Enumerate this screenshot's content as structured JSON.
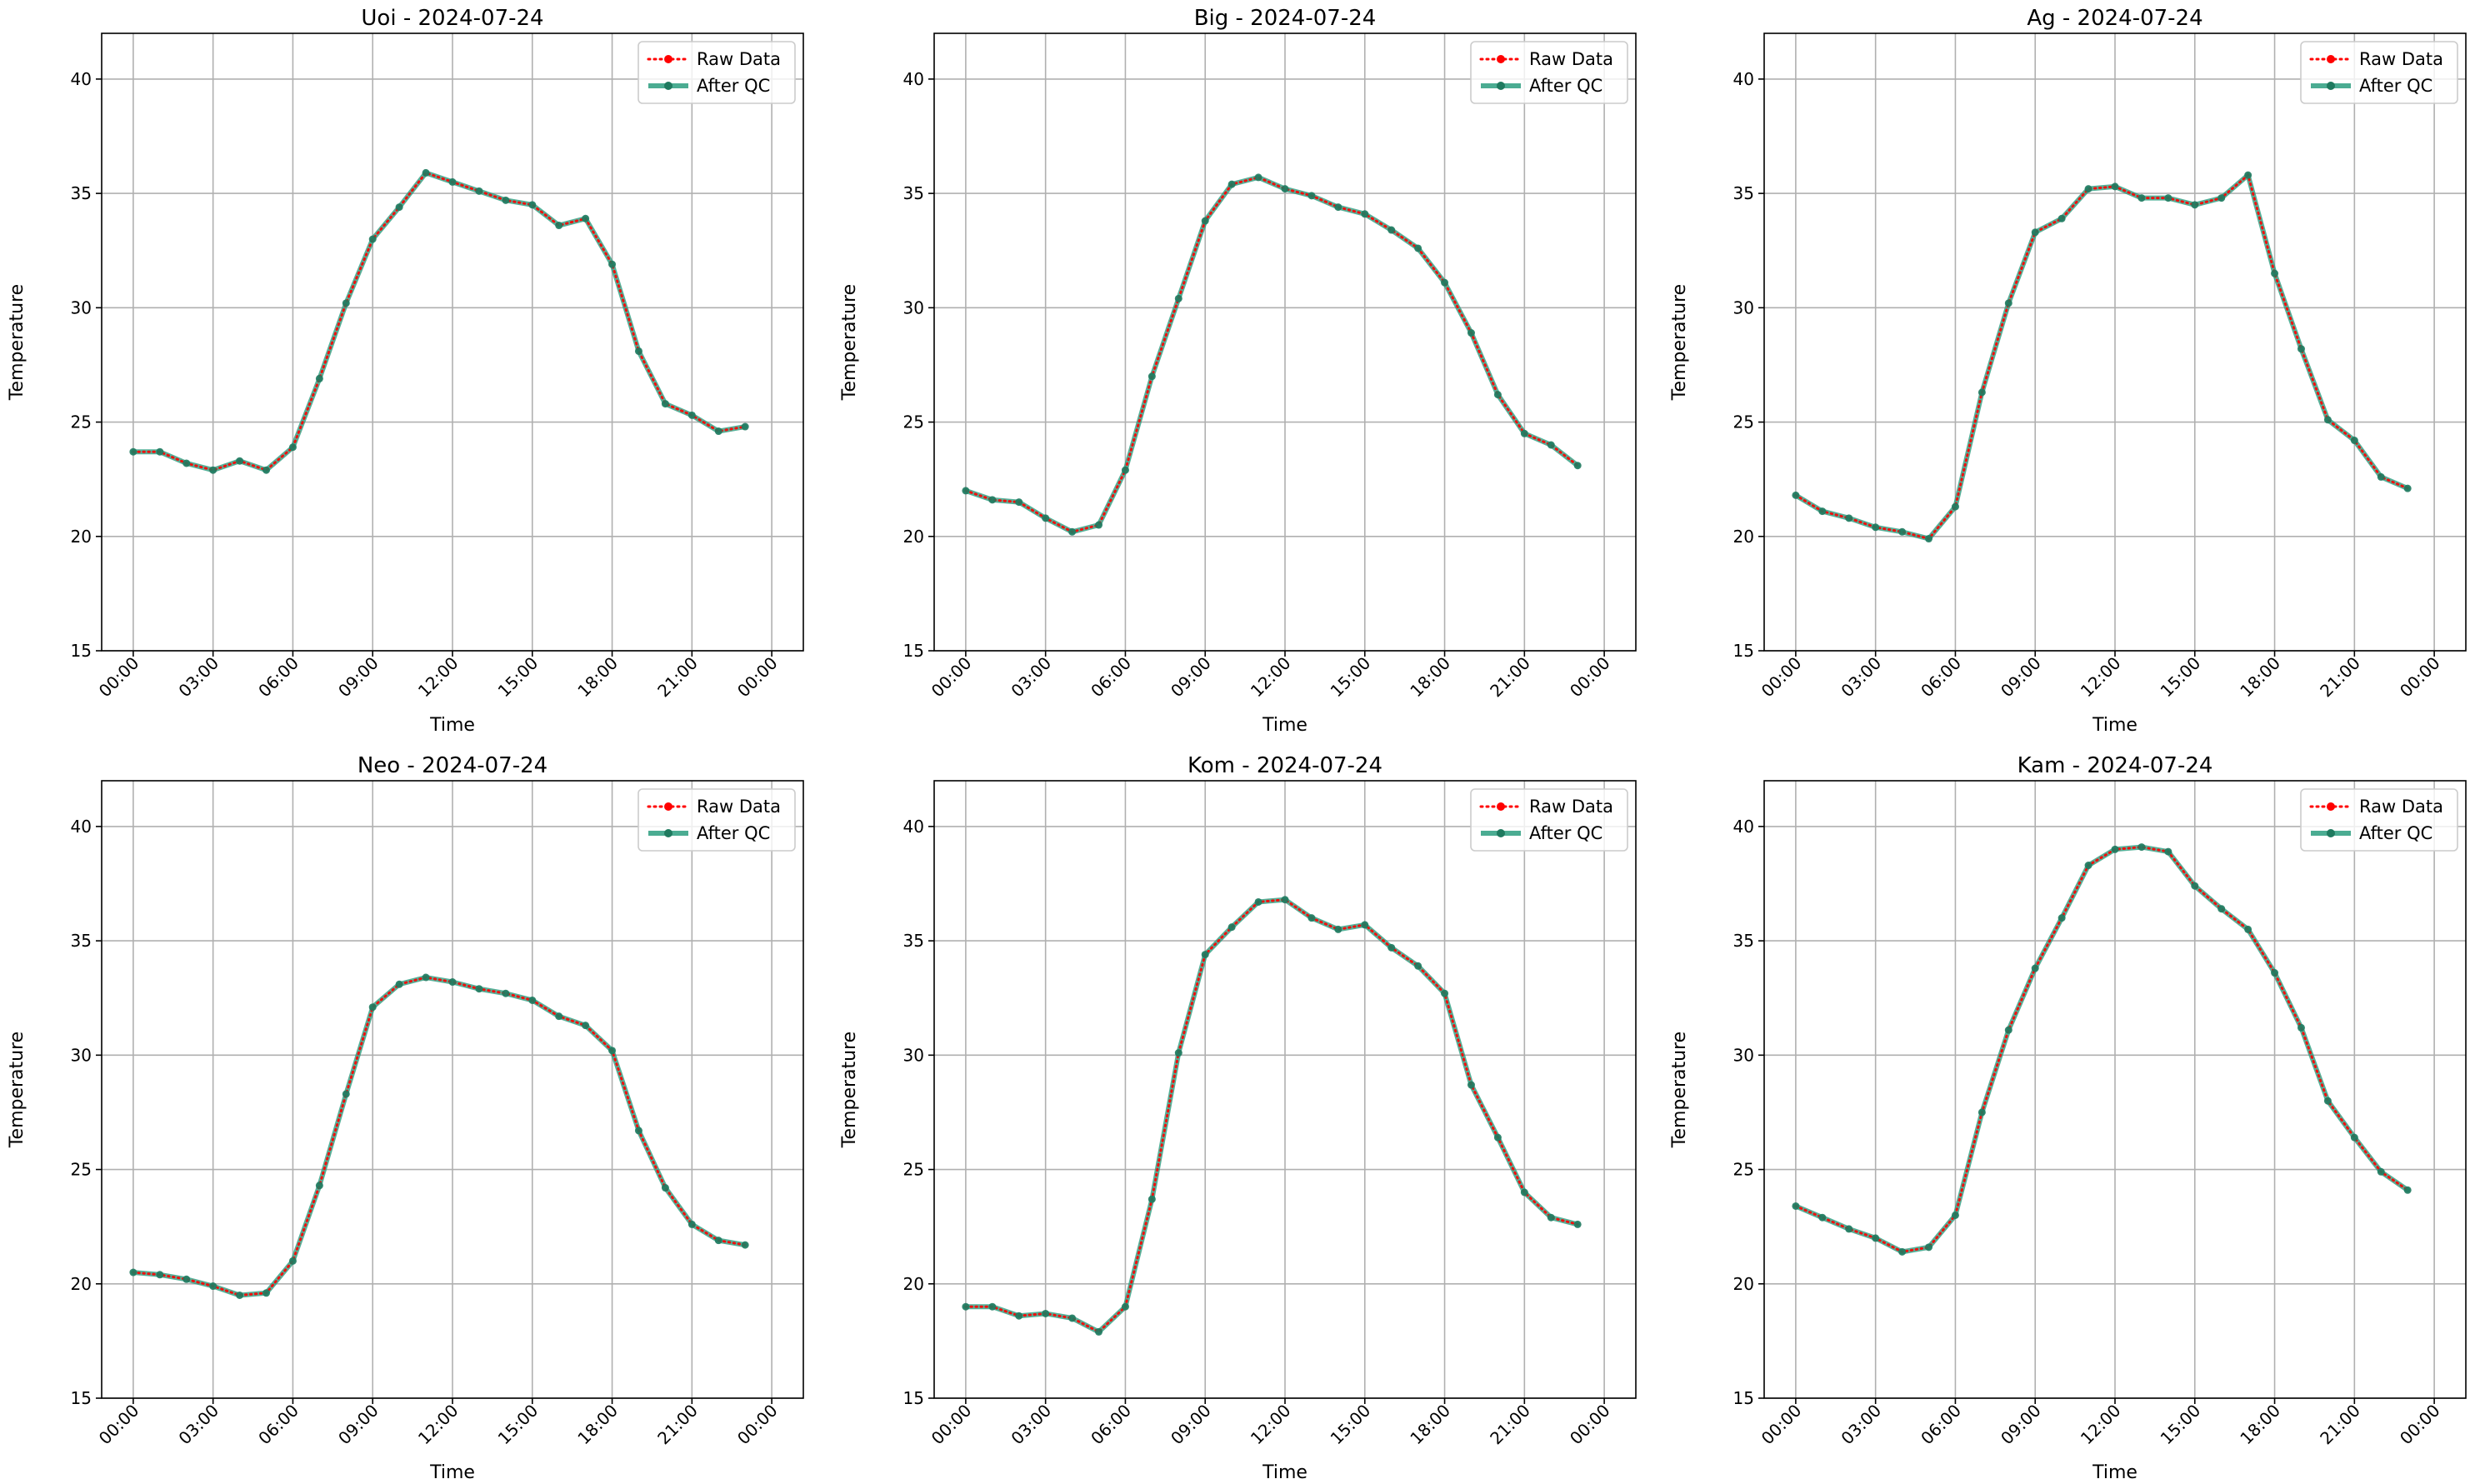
{
  "figure": {
    "xlabel": "Time",
    "ylabel": "Temperature",
    "x_tick_labels": [
      "00:00",
      "03:00",
      "06:00",
      "09:00",
      "12:00",
      "15:00",
      "18:00",
      "21:00",
      "00:00"
    ],
    "legend": [
      "Raw Data",
      "After QC"
    ],
    "colors": {
      "raw": "#ff0000",
      "qc": "#2b9d7f",
      "qc_marker": "#1f7a5f",
      "grid": "#b0b0b0"
    }
  },
  "chart_data": [
    {
      "type": "line",
      "title": "Uoi - 2024-07-24",
      "xlabel": "Time",
      "ylabel": "Temperature",
      "x": [
        "00:00",
        "01:00",
        "02:00",
        "03:00",
        "04:00",
        "05:00",
        "06:00",
        "07:00",
        "08:00",
        "09:00",
        "10:00",
        "11:00",
        "12:00",
        "13:00",
        "14:00",
        "15:00",
        "16:00",
        "17:00",
        "18:00",
        "19:00",
        "20:00",
        "21:00",
        "22:00",
        "23:00"
      ],
      "xlim": [
        "00:00",
        "00:00"
      ],
      "ylim": [
        15,
        42
      ],
      "yticks": [
        15,
        20,
        25,
        30,
        35,
        40
      ],
      "grid": true,
      "legend_position": "top-right",
      "series": [
        {
          "name": "Raw Data",
          "style": "dotted",
          "values": [
            23.7,
            23.7,
            23.2,
            22.9,
            23.3,
            22.9,
            23.9,
            26.9,
            30.2,
            33.0,
            34.4,
            35.9,
            35.5,
            35.1,
            34.7,
            34.5,
            33.6,
            33.9,
            31.9,
            28.1,
            25.8,
            25.3,
            24.6,
            24.8
          ]
        },
        {
          "name": "After QC",
          "style": "solid",
          "values": [
            23.7,
            23.7,
            23.2,
            22.9,
            23.3,
            22.9,
            23.9,
            26.9,
            30.2,
            33.0,
            34.4,
            35.9,
            35.5,
            35.1,
            34.7,
            34.5,
            33.6,
            33.9,
            31.9,
            28.1,
            25.8,
            25.3,
            24.6,
            24.8
          ]
        }
      ]
    },
    {
      "type": "line",
      "title": "Big - 2024-07-24",
      "xlabel": "Time",
      "ylabel": "Temperature",
      "x": [
        "00:00",
        "01:00",
        "02:00",
        "03:00",
        "04:00",
        "05:00",
        "06:00",
        "07:00",
        "08:00",
        "09:00",
        "10:00",
        "11:00",
        "12:00",
        "13:00",
        "14:00",
        "15:00",
        "16:00",
        "17:00",
        "18:00",
        "19:00",
        "20:00",
        "21:00",
        "22:00",
        "23:00"
      ],
      "xlim": [
        "00:00",
        "00:00"
      ],
      "ylim": [
        15,
        42
      ],
      "yticks": [
        15,
        20,
        25,
        30,
        35,
        40
      ],
      "grid": true,
      "legend_position": "top-right",
      "series": [
        {
          "name": "Raw Data",
          "style": "dotted",
          "values": [
            22.0,
            21.6,
            21.5,
            20.8,
            20.2,
            20.5,
            22.9,
            27.0,
            30.4,
            33.8,
            35.4,
            35.7,
            35.2,
            34.9,
            34.4,
            34.1,
            33.4,
            32.6,
            31.1,
            28.9,
            26.2,
            24.5,
            24.0,
            23.1
          ]
        },
        {
          "name": "After QC",
          "style": "solid",
          "values": [
            22.0,
            21.6,
            21.5,
            20.8,
            20.2,
            20.5,
            22.9,
            27.0,
            30.4,
            33.8,
            35.4,
            35.7,
            35.2,
            34.9,
            34.4,
            34.1,
            33.4,
            32.6,
            31.1,
            28.9,
            26.2,
            24.5,
            24.0,
            23.1
          ]
        }
      ]
    },
    {
      "type": "line",
      "title": "Ag - 2024-07-24",
      "xlabel": "Time",
      "ylabel": "Temperature",
      "x": [
        "00:00",
        "01:00",
        "02:00",
        "03:00",
        "04:00",
        "05:00",
        "06:00",
        "07:00",
        "08:00",
        "09:00",
        "10:00",
        "11:00",
        "12:00",
        "13:00",
        "14:00",
        "15:00",
        "16:00",
        "17:00",
        "18:00",
        "19:00",
        "20:00",
        "21:00",
        "22:00",
        "23:00"
      ],
      "xlim": [
        "00:00",
        "00:00"
      ],
      "ylim": [
        15,
        42
      ],
      "yticks": [
        15,
        20,
        25,
        30,
        35,
        40
      ],
      "grid": true,
      "legend_position": "top-right",
      "series": [
        {
          "name": "Raw Data",
          "style": "dotted",
          "values": [
            21.8,
            21.1,
            20.8,
            20.4,
            20.2,
            19.9,
            21.3,
            26.3,
            30.2,
            33.3,
            33.9,
            35.2,
            35.3,
            34.8,
            34.8,
            34.5,
            34.8,
            35.8,
            31.5,
            28.2,
            25.1,
            24.2,
            22.6,
            22.1
          ]
        },
        {
          "name": "After QC",
          "style": "solid",
          "values": [
            21.8,
            21.1,
            20.8,
            20.4,
            20.2,
            19.9,
            21.3,
            26.3,
            30.2,
            33.3,
            33.9,
            35.2,
            35.3,
            34.8,
            34.8,
            34.5,
            34.8,
            35.8,
            31.5,
            28.2,
            25.1,
            24.2,
            22.6,
            22.1
          ]
        }
      ]
    },
    {
      "type": "line",
      "title": "Neo - 2024-07-24",
      "xlabel": "Time",
      "ylabel": "Temperature",
      "x": [
        "00:00",
        "01:00",
        "02:00",
        "03:00",
        "04:00",
        "05:00",
        "06:00",
        "07:00",
        "08:00",
        "09:00",
        "10:00",
        "11:00",
        "12:00",
        "13:00",
        "14:00",
        "15:00",
        "16:00",
        "17:00",
        "18:00",
        "19:00",
        "20:00",
        "21:00",
        "22:00",
        "23:00"
      ],
      "xlim": [
        "00:00",
        "00:00"
      ],
      "ylim": [
        15,
        42
      ],
      "yticks": [
        15,
        20,
        25,
        30,
        35,
        40
      ],
      "grid": true,
      "legend_position": "top-right",
      "series": [
        {
          "name": "Raw Data",
          "style": "dotted",
          "values": [
            20.5,
            20.4,
            20.2,
            19.9,
            19.5,
            19.6,
            21.0,
            24.3,
            28.3,
            32.1,
            33.1,
            33.4,
            33.2,
            32.9,
            32.7,
            32.4,
            31.7,
            31.3,
            30.2,
            26.7,
            24.2,
            22.6,
            21.9,
            21.7
          ]
        },
        {
          "name": "After QC",
          "style": "solid",
          "values": [
            20.5,
            20.4,
            20.2,
            19.9,
            19.5,
            19.6,
            21.0,
            24.3,
            28.3,
            32.1,
            33.1,
            33.4,
            33.2,
            32.9,
            32.7,
            32.4,
            31.7,
            31.3,
            30.2,
            26.7,
            24.2,
            22.6,
            21.9,
            21.7
          ]
        }
      ]
    },
    {
      "type": "line",
      "title": "Kom - 2024-07-24",
      "xlabel": "Time",
      "ylabel": "Temperature",
      "x": [
        "00:00",
        "01:00",
        "02:00",
        "03:00",
        "04:00",
        "05:00",
        "06:00",
        "07:00",
        "08:00",
        "09:00",
        "10:00",
        "11:00",
        "12:00",
        "13:00",
        "14:00",
        "15:00",
        "16:00",
        "17:00",
        "18:00",
        "19:00",
        "20:00",
        "21:00",
        "22:00",
        "23:00"
      ],
      "xlim": [
        "00:00",
        "00:00"
      ],
      "ylim": [
        15,
        42
      ],
      "yticks": [
        15,
        20,
        25,
        30,
        35,
        40
      ],
      "grid": true,
      "legend_position": "top-right",
      "series": [
        {
          "name": "Raw Data",
          "style": "dotted",
          "values": [
            19.0,
            19.0,
            18.6,
            18.7,
            18.5,
            17.9,
            19.0,
            23.7,
            30.1,
            34.4,
            35.6,
            36.7,
            36.8,
            36.0,
            35.5,
            35.7,
            34.7,
            33.9,
            32.7,
            28.7,
            26.4,
            24.0,
            22.9,
            22.6
          ]
        },
        {
          "name": "After QC",
          "style": "solid",
          "values": [
            19.0,
            19.0,
            18.6,
            18.7,
            18.5,
            17.9,
            19.0,
            23.7,
            30.1,
            34.4,
            35.6,
            36.7,
            36.8,
            36.0,
            35.5,
            35.7,
            34.7,
            33.9,
            32.7,
            28.7,
            26.4,
            24.0,
            22.9,
            22.6
          ]
        }
      ]
    },
    {
      "type": "line",
      "title": "Kam - 2024-07-24",
      "xlabel": "Time",
      "ylabel": "Temperature",
      "x": [
        "00:00",
        "01:00",
        "02:00",
        "03:00",
        "04:00",
        "05:00",
        "06:00",
        "07:00",
        "08:00",
        "09:00",
        "10:00",
        "11:00",
        "12:00",
        "13:00",
        "14:00",
        "15:00",
        "16:00",
        "17:00",
        "18:00",
        "19:00",
        "20:00",
        "21:00",
        "22:00",
        "23:00"
      ],
      "xlim": [
        "00:00",
        "00:00"
      ],
      "ylim": [
        15,
        42
      ],
      "yticks": [
        15,
        20,
        25,
        30,
        35,
        40
      ],
      "grid": true,
      "legend_position": "top-right",
      "series": [
        {
          "name": "Raw Data",
          "style": "dotted",
          "values": [
            23.4,
            22.9,
            22.4,
            22.0,
            21.4,
            21.6,
            23.0,
            27.5,
            31.1,
            33.8,
            36.0,
            38.3,
            39.0,
            39.1,
            38.9,
            37.4,
            36.4,
            35.5,
            33.6,
            31.2,
            28.0,
            26.4,
            24.9,
            24.1
          ]
        },
        {
          "name": "After QC",
          "style": "solid",
          "values": [
            23.4,
            22.9,
            22.4,
            22.0,
            21.4,
            21.6,
            23.0,
            27.5,
            31.1,
            33.8,
            36.0,
            38.3,
            39.0,
            39.1,
            38.9,
            37.4,
            36.4,
            35.5,
            33.6,
            31.2,
            28.0,
            26.4,
            24.9,
            24.1
          ]
        }
      ]
    }
  ]
}
